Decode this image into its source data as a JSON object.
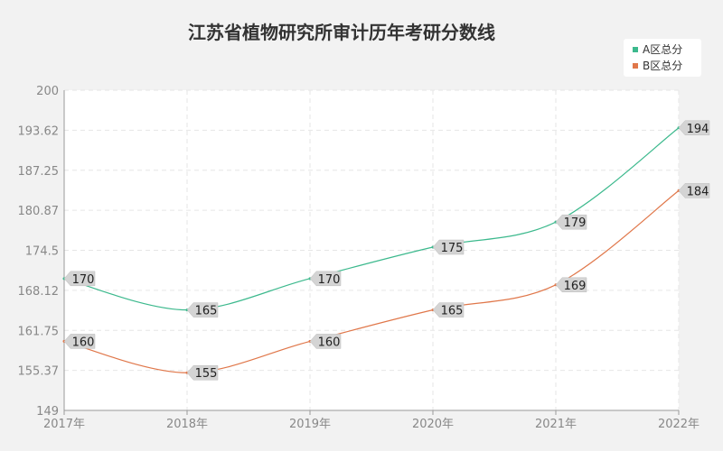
{
  "chart_data": {
    "type": "line",
    "title": "江苏省植物研究所审计历年考研分数线",
    "xlabel": "",
    "ylabel": "",
    "categories": [
      "2017年",
      "2018年",
      "2019年",
      "2020年",
      "2021年",
      "2022年"
    ],
    "y_ticks": [
      "149",
      "155.37",
      "161.75",
      "168.12",
      "174.5",
      "180.87",
      "187.25",
      "193.62",
      "200"
    ],
    "ylim": [
      149,
      200
    ],
    "grid": true,
    "legend_position": "top-right",
    "series": [
      {
        "name": "A区总分",
        "color": "#3cb98d",
        "values": [
          170,
          165,
          170,
          175,
          179,
          194
        ]
      },
      {
        "name": "B区总分",
        "color": "#e0774a",
        "values": [
          160,
          155,
          160,
          165,
          169,
          184
        ]
      }
    ]
  }
}
